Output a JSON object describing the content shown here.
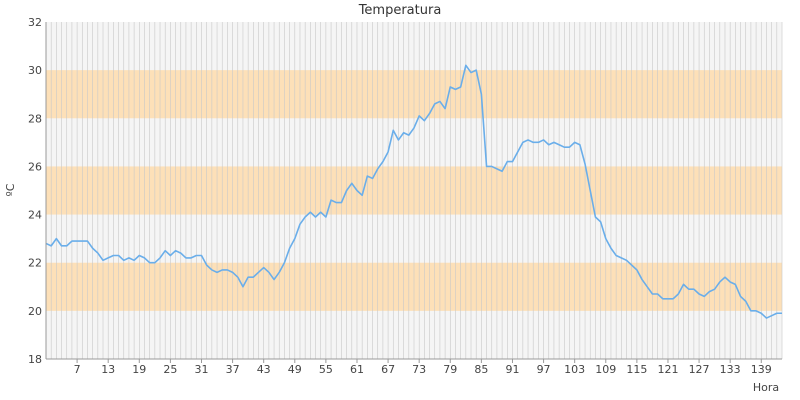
{
  "chart_data": {
    "type": "line",
    "title": "Temperatura",
    "xlabel": "Hora",
    "ylabel": "ºC",
    "xlim": [
      1,
      143
    ],
    "ylim": [
      18,
      32
    ],
    "yticks": [
      18,
      20,
      22,
      24,
      26,
      28,
      30,
      32
    ],
    "xticks": [
      7,
      13,
      19,
      25,
      31,
      37,
      43,
      49,
      55,
      61,
      67,
      73,
      79,
      85,
      91,
      97,
      103,
      109,
      115,
      121,
      127,
      133,
      139
    ],
    "grid": "vertical lines every hour",
    "bands": [
      {
        "from": 20,
        "to": 22,
        "color": "#fde0b8"
      },
      {
        "from": 24,
        "to": 26,
        "color": "#fde0b8"
      },
      {
        "from": 28,
        "to": 30,
        "color": "#fde0b8"
      }
    ],
    "plot_background": "#f5f5f5",
    "series": [
      {
        "color": "#6aaeea",
        "x": [
          1,
          2,
          3,
          4,
          5,
          6,
          7,
          8,
          9,
          10,
          11,
          12,
          13,
          14,
          15,
          16,
          17,
          18,
          19,
          20,
          21,
          22,
          23,
          24,
          25,
          26,
          27,
          28,
          29,
          30,
          31,
          32,
          33,
          34,
          35,
          36,
          37,
          38,
          39,
          40,
          41,
          42,
          43,
          44,
          45,
          46,
          47,
          48,
          49,
          50,
          51,
          52,
          53,
          54,
          55,
          56,
          57,
          58,
          59,
          60,
          61,
          62,
          63,
          64,
          65,
          66,
          67,
          68,
          69,
          70,
          71,
          72,
          73,
          74,
          75,
          76,
          77,
          78,
          79,
          80,
          81,
          82,
          83,
          84,
          85,
          86,
          87,
          88,
          89,
          90,
          91,
          92,
          93,
          94,
          95,
          96,
          97,
          98,
          99,
          100,
          101,
          102,
          103,
          104,
          105,
          106,
          107,
          108,
          109,
          110,
          111,
          112,
          113,
          114,
          115,
          116,
          117,
          118,
          119,
          120,
          121,
          122,
          123,
          124,
          125,
          126,
          127,
          128,
          129,
          130,
          131,
          132,
          133,
          134,
          135,
          136,
          137,
          138,
          139,
          140,
          141,
          142,
          143
        ],
        "values": [
          22.8,
          22.7,
          23.0,
          22.7,
          22.7,
          22.9,
          22.9,
          22.9,
          22.9,
          22.6,
          22.4,
          22.1,
          22.2,
          22.3,
          22.3,
          22.1,
          22.2,
          22.1,
          22.3,
          22.2,
          22.0,
          22.0,
          22.2,
          22.5,
          22.3,
          22.5,
          22.4,
          22.2,
          22.2,
          22.3,
          22.3,
          21.9,
          21.7,
          21.6,
          21.7,
          21.7,
          21.6,
          21.4,
          21.0,
          21.4,
          21.4,
          21.6,
          21.8,
          21.6,
          21.3,
          21.6,
          22.0,
          22.6,
          23.0,
          23.6,
          23.9,
          24.1,
          23.9,
          24.1,
          23.9,
          24.6,
          24.5,
          24.5,
          25.0,
          25.3,
          25.0,
          24.8,
          25.6,
          25.5,
          25.9,
          26.2,
          26.6,
          27.5,
          27.1,
          27.4,
          27.3,
          27.6,
          28.1,
          27.9,
          28.2,
          28.6,
          28.7,
          28.4,
          29.3,
          29.2,
          29.3,
          30.2,
          29.9,
          30.0,
          29.0,
          26.0,
          26.0,
          25.9,
          25.8,
          26.2,
          26.2,
          26.6,
          27.0,
          27.1,
          27.0,
          27.0,
          27.1,
          26.9,
          27.0,
          26.9,
          26.8,
          26.8,
          27.0,
          26.9,
          26.1,
          25.0,
          23.9,
          23.7,
          23.0,
          22.6,
          22.3,
          22.2,
          22.1,
          21.9,
          21.7,
          21.3,
          21.0,
          20.7,
          20.7,
          20.5,
          20.5,
          20.5,
          20.7,
          21.1,
          20.9,
          20.9,
          20.7,
          20.6,
          20.8,
          20.9,
          21.2,
          21.4,
          21.2,
          21.1,
          20.6,
          20.4,
          20.0,
          20.0,
          19.9,
          19.7,
          19.8,
          19.9,
          19.9
        ]
      }
    ]
  }
}
